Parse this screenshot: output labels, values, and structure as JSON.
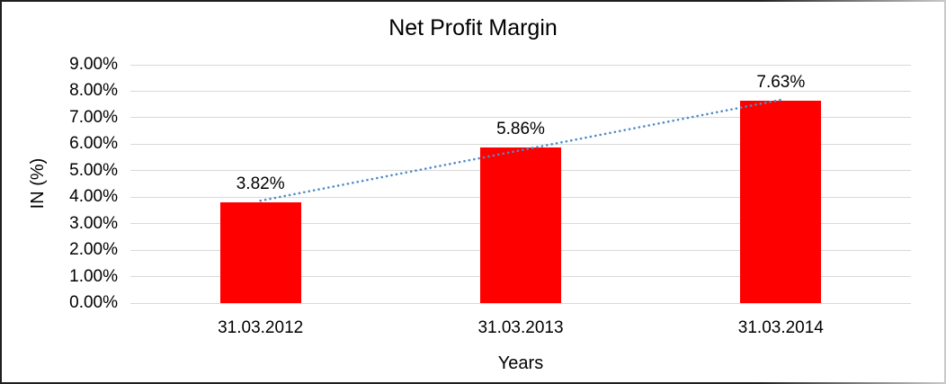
{
  "chart_data": {
    "type": "bar",
    "title": "Net Profit Margin",
    "categories": [
      "31.03.2012",
      "31.03.2013",
      "31.03.2014"
    ],
    "values": [
      3.82,
      5.86,
      7.63
    ],
    "value_labels": [
      "3.82%",
      "5.86%",
      "7.63%"
    ],
    "xlabel": "Years",
    "ylabel": "IN (%)",
    "ylim": [
      0,
      9
    ],
    "ytick_labels": [
      "9.00%",
      "8.00%",
      "7.00%",
      "6.00%",
      "5.00%",
      "4.00%",
      "3.00%",
      "2.00%",
      "1.00%",
      "0.00%"
    ],
    "grid": true,
    "legend": false,
    "bar_color": "#FF0000",
    "gridline_color": "#D9D9D9",
    "text_color": "#000000",
    "background_color": "#FFFFFF",
    "trendline": {
      "type": "linear",
      "style": "dotted",
      "color": "#4E8BC8"
    }
  }
}
